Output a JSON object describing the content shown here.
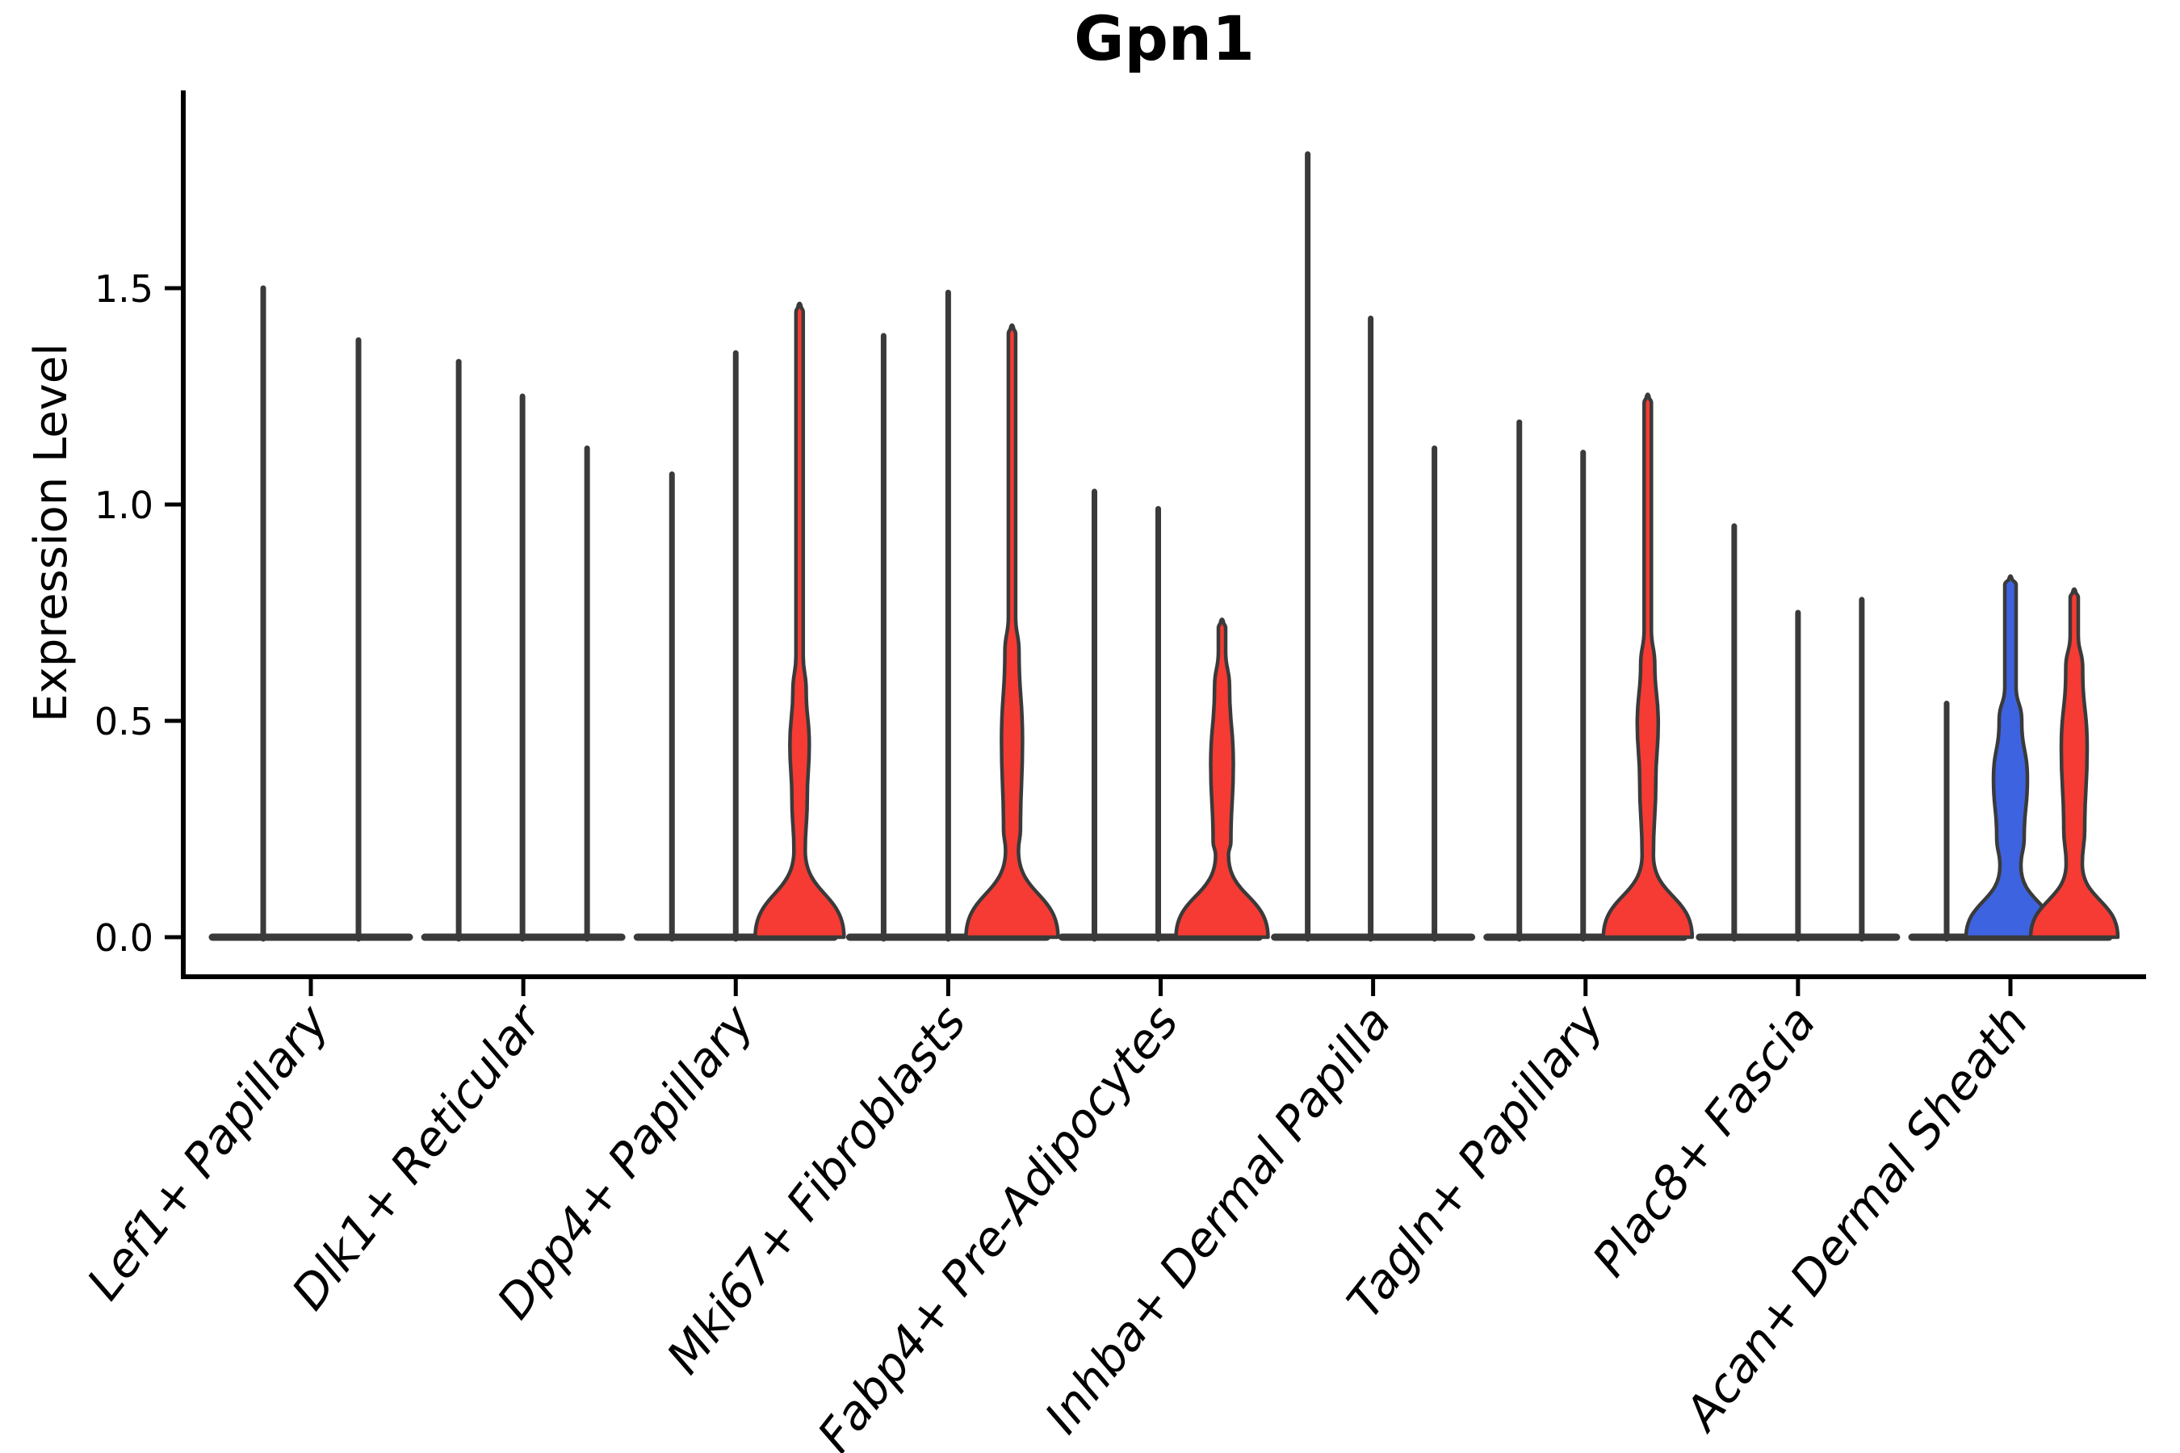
{
  "title": "Gpn1",
  "colors": {
    "background": "#ffffff",
    "outline": "#3a3a3a",
    "axis": "#000000",
    "red": "#f53b33",
    "blue": "#3e63e0"
  },
  "chart_data": {
    "type": "violin",
    "title": "Gpn1",
    "xlabel": "",
    "ylabel": "Expression Level",
    "ylim": [
      -0.09,
      1.96
    ],
    "yticks": [
      0.0,
      0.5,
      1.0,
      1.5
    ],
    "ytick_labels": [
      "0.0",
      "0.5",
      "1.0",
      "1.5"
    ],
    "xtick_rotation_deg": 52,
    "grid": false,
    "legend": "none",
    "description": "Stacked/grouped violin plot of Gpn1 expression; most violins collapse to a baseline disc at 0 with a thin spike to the max expression; filled violins show non-zero density bulges.",
    "categories": [
      {
        "label": "Lef1+ Papillary",
        "violins": [
          {
            "offset": -59,
            "max": 1.5,
            "style": "spike"
          },
          {
            "offset": 59,
            "max": 1.38,
            "style": "spike"
          }
        ]
      },
      {
        "label": "Dlk1+ Reticular",
        "violins": [
          {
            "offset": -80,
            "max": 1.33,
            "style": "spike"
          },
          {
            "offset": -1,
            "max": 1.25,
            "style": "spike"
          },
          {
            "offset": 79,
            "max": 1.13,
            "style": "spike"
          }
        ]
      },
      {
        "label": "Dpp4+ Papillary",
        "violins": [
          {
            "offset": -79,
            "max": 1.07,
            "style": "spike"
          },
          {
            "offset": 0,
            "max": 1.35,
            "style": "spike"
          },
          {
            "offset": 79,
            "max": 1.46,
            "style": "filled",
            "fill": "red",
            "bulge_top": 0.57,
            "bulge_bottom": 0.32,
            "bulge_hw": 12,
            "neck_v": 0.2,
            "neck_hw": 7,
            "base_hw": 55,
            "spike_hw": 4.5
          }
        ]
      },
      {
        "label": "Mki67+ Fibroblasts",
        "violins": [
          {
            "offset": -80,
            "max": 1.39,
            "style": "spike"
          },
          {
            "offset": 0,
            "max": 1.49,
            "style": "spike"
          },
          {
            "offset": 79,
            "max": 1.41,
            "style": "filled",
            "fill": "red",
            "bulge_top": 0.66,
            "bulge_bottom": 0.25,
            "bulge_hw": 13,
            "neck_v": 0.2,
            "neck_hw": 8,
            "base_hw": 57,
            "spike_hw": 4.5
          }
        ]
      },
      {
        "label": "Fabp4+ Pre-Adipocytes",
        "violins": [
          {
            "offset": -82,
            "max": 1.03,
            "style": "spike"
          },
          {
            "offset": -3,
            "max": 0.99,
            "style": "spike"
          },
          {
            "offset": 76,
            "max": 0.73,
            "style": "filled",
            "fill": "red",
            "bulge_top": 0.58,
            "bulge_bottom": 0.22,
            "bulge_hw": 14,
            "neck_v": 0.19,
            "neck_hw": 8,
            "base_hw": 57,
            "spike_hw": 4.5
          }
        ]
      },
      {
        "label": "Inhba+ Dermal Papilla",
        "violins": [
          {
            "offset": -81,
            "max": 1.81,
            "style": "spike"
          },
          {
            "offset": -3,
            "max": 1.43,
            "style": "spike"
          },
          {
            "offset": 76,
            "max": 1.13,
            "style": "spike"
          }
        ]
      },
      {
        "label": "Tagln+ Papillary",
        "violins": [
          {
            "offset": -82,
            "max": 1.19,
            "style": "spike"
          },
          {
            "offset": -3,
            "max": 1.12,
            "style": "spike"
          },
          {
            "offset": 77,
            "max": 1.25,
            "style": "filled",
            "fill": "red",
            "bulge_top": 0.63,
            "bulge_bottom": 0.36,
            "bulge_hw": 13,
            "neck_v": 0.19,
            "neck_hw": 7,
            "base_hw": 55,
            "spike_hw": 4.5
          }
        ]
      },
      {
        "label": "Plac8+ Fascia",
        "violins": [
          {
            "offset": -79,
            "max": 0.95,
            "style": "spike"
          },
          {
            "offset": 0,
            "max": 0.75,
            "style": "spike"
          },
          {
            "offset": 79,
            "max": 0.78,
            "style": "spike"
          }
        ]
      },
      {
        "label": "Acan+ Dermal Sheath",
        "violins": [
          {
            "offset": -79,
            "max": 0.54,
            "style": "spike"
          },
          {
            "offset": 0,
            "max": 0.83,
            "style": "filled",
            "fill": "blue",
            "bulge_top": 0.5,
            "bulge_bottom": 0.23,
            "bulge_hw": 21,
            "neck_v": 0.165,
            "neck_hw": 13,
            "base_hw": 55,
            "spike_hw": 7
          },
          {
            "offset": 79,
            "max": 0.8,
            "style": "filled",
            "fill": "red",
            "bulge_top": 0.62,
            "bulge_bottom": 0.25,
            "bulge_hw": 16,
            "neck_v": 0.17,
            "neck_hw": 10,
            "base_hw": 54,
            "spike_hw": 5
          }
        ]
      }
    ]
  }
}
